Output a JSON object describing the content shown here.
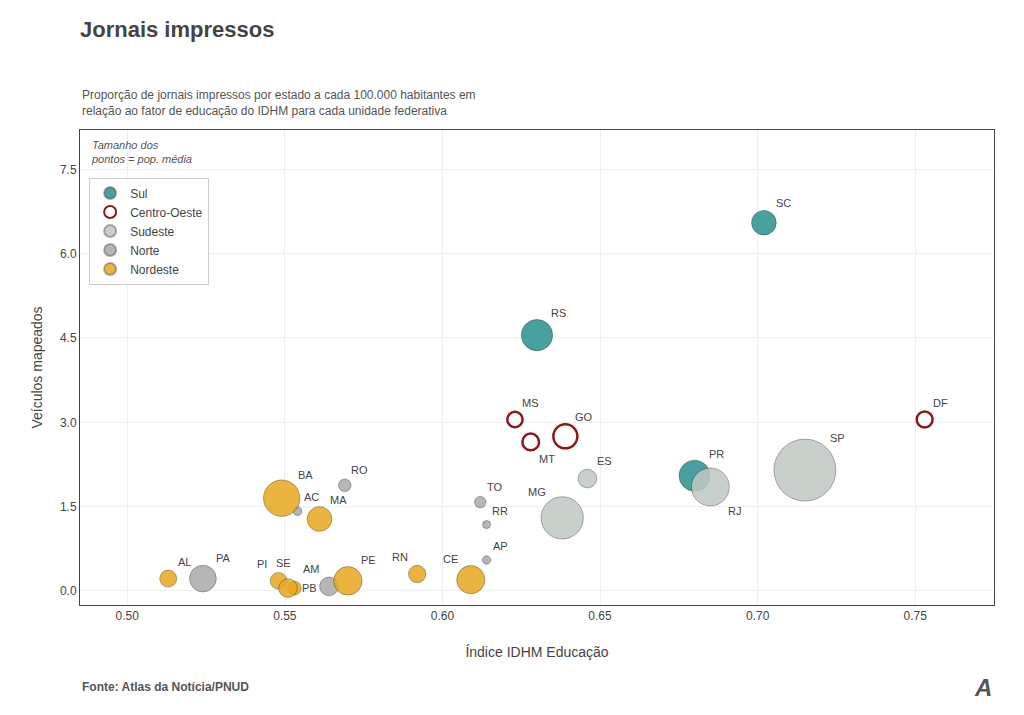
{
  "chart_data": {
    "type": "scatter",
    "title": "Jornais impressos",
    "subtitle": "Proporção de jornais impressos por estado a cada 100.000 habitantes em\nrelação ao fator de educação do IDHM para cada unidade federativa",
    "xlabel": "Índice IDHM Educação",
    "ylabel": "Veículos mapeados",
    "annotations": [
      "Tamanho dos\npontos = pop. média",
      "Fonte: Atlas da Notícia/PNUD",
      "A"
    ],
    "xlim": [
      0.485,
      0.775
    ],
    "xticks": [
      {
        "value": 0.5,
        "label": "0.50"
      },
      0.55,
      {
        "value": 0.6,
        "label": "0.60"
      },
      0.65,
      {
        "value": 0.7,
        "label": "0.70"
      },
      0.75
    ],
    "ylim": [
      -0.25,
      8.2
    ],
    "yticks": [
      {
        "value": 0,
        "label": "0.0"
      },
      1.5,
      {
        "value": 3,
        "label": "3.0"
      },
      4.5,
      {
        "value": 6,
        "label": "6.0"
      },
      7.5
    ],
    "grid": true,
    "legend": "upper left",
    "series": [
      {
        "name": "Sul",
        "color": "#2a9090",
        "marker": "circle",
        "labels": [
          "SC",
          "RS",
          "PR"
        ],
        "x": [
          0.702,
          0.63,
          0.68
        ],
        "values": [
          6.55,
          4.55,
          2.05
        ],
        "sizes": [
          7.0,
          11.3,
          11.1
        ]
      },
      {
        "name": "Centro-Oeste",
        "color": "#8b1a1a",
        "marker": "circle-open",
        "labels": [
          "DF",
          "MS",
          "MT",
          "GO"
        ],
        "x": [
          0.753,
          0.623,
          0.628,
          0.639
        ],
        "values": [
          3.05,
          3.05,
          2.65,
          2.75
        ],
        "sizes": [
          2.9,
          2.7,
          3.2,
          6.6
        ]
      },
      {
        "name": "Sudeste",
        "color": "#c0c8c4",
        "marker": "circle",
        "labels": [
          "SP",
          "RJ",
          "MG",
          "ES"
        ],
        "x": [
          0.715,
          0.685,
          0.638,
          0.646
        ],
        "values": [
          2.15,
          1.85,
          1.3,
          2.0
        ],
        "sizes": [
          44.0,
          16.5,
          20.5,
          4.0
        ]
      },
      {
        "name": "Norte",
        "color": "#aaaaaa",
        "marker": "circle",
        "labels": [
          "AM",
          "PA",
          "AC",
          "RO",
          "RR",
          "AP",
          "TO"
        ],
        "x": [
          0.564,
          0.524,
          0.554,
          0.569,
          0.614,
          0.614,
          0.612
        ],
        "values": [
          0.08,
          0.22,
          1.42,
          1.88,
          1.18,
          0.55,
          1.58
        ],
        "sizes": [
          4.0,
          8.2,
          0.9,
          1.8,
          0.5,
          0.8,
          1.5
        ]
      },
      {
        "name": "Nordeste",
        "color": "#e8a820",
        "marker": "circle",
        "labels": [
          "AL",
          "BA",
          "MA",
          "PI",
          "PE",
          "CE",
          "RN",
          "SE",
          "PB"
        ],
        "x": [
          0.513,
          0.549,
          0.561,
          0.548,
          0.57,
          0.609,
          0.592,
          0.553,
          0.551
        ],
        "values": [
          0.22,
          1.65,
          1.28,
          0.18,
          0.18,
          0.2,
          0.3,
          0.05,
          0.05
        ],
        "sizes": [
          3.3,
          15.2,
          7.0,
          3.2,
          9.3,
          9.1,
          3.5,
          2.2,
          4.0
        ]
      }
    ]
  }
}
